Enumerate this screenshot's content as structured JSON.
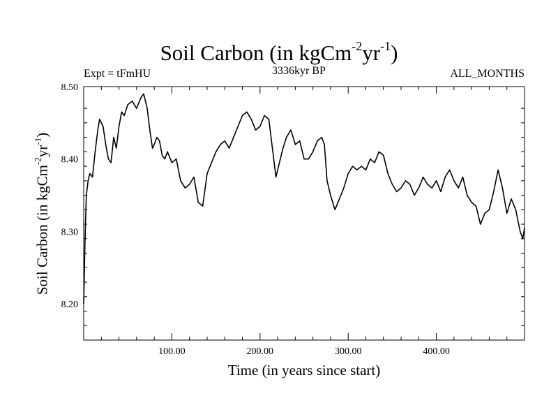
{
  "chart_data": {
    "type": "line",
    "title": {
      "text": "Soil Carbon (in kgCm",
      "sup1": "-2",
      "mid": "yr",
      "sup2": "-1",
      "end": ")"
    },
    "annotations": {
      "left": "Expt = tFmHU",
      "center": "3336kyr BP",
      "right": "ALL_MONTHS"
    },
    "xlabel": "Time (in years since start)",
    "ylabel": {
      "text": "Soil Carbon (in kgCm",
      "sup1": "-2",
      "mid": "yr",
      "sup2": "-1",
      "end": ")"
    },
    "xlim": [
      0,
      500
    ],
    "ylim": [
      8.15,
      8.5
    ],
    "xticks_major": [
      100,
      200,
      300,
      400
    ],
    "xtick_labels": [
      "100.00",
      "200.00",
      "300.00",
      "400.00"
    ],
    "yticks_major": [
      8.2,
      8.3,
      8.4,
      8.5
    ],
    "ytick_labels": [
      "8.20",
      "8.30",
      "8.40",
      "8.50"
    ],
    "grid": false,
    "line_color": "#000000",
    "series": [
      {
        "x": [
          0,
          1,
          2,
          3,
          5,
          7,
          10,
          13,
          16,
          18,
          20,
          22,
          25,
          28,
          31,
          34,
          37,
          40,
          43,
          46,
          50,
          55,
          60,
          65,
          68,
          70,
          72,
          75,
          78,
          80,
          83,
          86,
          89,
          92,
          95,
          100,
          105,
          110,
          115,
          120,
          125,
          130,
          135,
          140,
          145,
          150,
          155,
          160,
          165,
          170,
          175,
          180,
          185,
          190,
          195,
          200,
          205,
          210,
          215,
          218,
          222,
          226,
          230,
          235,
          240,
          245,
          250,
          255,
          260,
          265,
          270,
          273,
          276,
          280,
          285,
          290,
          295,
          300,
          305,
          310,
          315,
          320,
          325,
          330,
          335,
          340,
          345,
          350,
          355,
          360,
          365,
          370,
          375,
          380,
          385,
          390,
          395,
          400,
          405,
          410,
          415,
          420,
          425,
          430,
          435,
          440,
          445,
          450,
          455,
          460,
          465,
          470,
          475,
          480,
          485,
          490,
          495,
          498,
          500
        ],
        "y": [
          8.2,
          8.26,
          8.31,
          8.35,
          8.37,
          8.38,
          8.375,
          8.41,
          8.44,
          8.455,
          8.45,
          8.445,
          8.42,
          8.4,
          8.395,
          8.43,
          8.415,
          8.445,
          8.465,
          8.46,
          8.475,
          8.48,
          8.47,
          8.485,
          8.49,
          8.48,
          8.47,
          8.44,
          8.415,
          8.42,
          8.43,
          8.425,
          8.405,
          8.4,
          8.41,
          8.395,
          8.4,
          8.37,
          8.36,
          8.365,
          8.375,
          8.34,
          8.335,
          8.38,
          8.395,
          8.41,
          8.42,
          8.425,
          8.415,
          8.43,
          8.445,
          8.46,
          8.465,
          8.455,
          8.44,
          8.445,
          8.46,
          8.455,
          8.405,
          8.375,
          8.395,
          8.415,
          8.43,
          8.44,
          8.42,
          8.425,
          8.4,
          8.4,
          8.41,
          8.425,
          8.43,
          8.42,
          8.37,
          8.35,
          8.33,
          8.345,
          8.36,
          8.38,
          8.39,
          8.385,
          8.39,
          8.385,
          8.4,
          8.395,
          8.41,
          8.405,
          8.38,
          8.365,
          8.355,
          8.36,
          8.37,
          8.365,
          8.35,
          8.36,
          8.375,
          8.365,
          8.36,
          8.37,
          8.355,
          8.375,
          8.385,
          8.37,
          8.36,
          8.375,
          8.35,
          8.34,
          8.335,
          8.31,
          8.325,
          8.33,
          8.355,
          8.385,
          8.36,
          8.325,
          8.345,
          8.33,
          8.3,
          8.29,
          8.305
        ]
      }
    ]
  }
}
